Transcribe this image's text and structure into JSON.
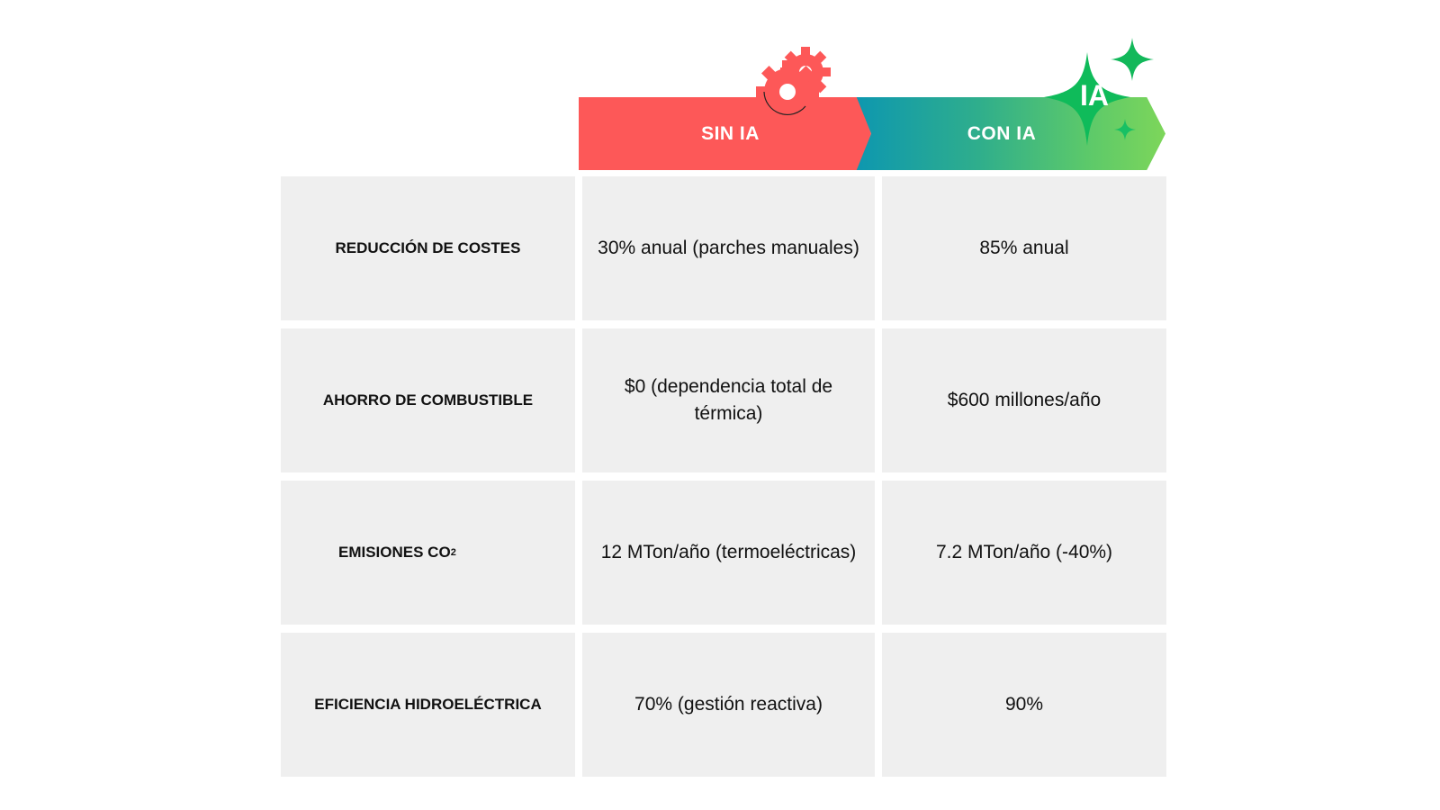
{
  "header": {
    "sin_ia": "SIN IA",
    "con_ia": "CON IA",
    "ia_badge": "IA",
    "gear_icon": "gear-icon",
    "sparkle_icon": "sparkle-icon",
    "colors": {
      "sin": "#fd5858",
      "con_start": "#0d97b0",
      "con_end": "#7dd65a",
      "badge": "#0fbb5a"
    }
  },
  "rows": [
    {
      "label": "REDUCCIÓN DE COSTES",
      "sin": "30% anual (parches manuales)",
      "con": "85% anual"
    },
    {
      "label": "AHORRO DE COMBUSTIBLE",
      "sin": "$0 (dependencia total de térmica)",
      "con": "$600 millones/año"
    },
    {
      "label": "EMISIONES CO",
      "label_sub": "2",
      "sin": "12 MTon/año (termoeléctricas)",
      "con": "7.2 MTon/año (-40%)"
    },
    {
      "label": "EFICIENCIA HIDROELÉCTRICA",
      "sin": "70% (gestión reactiva)",
      "con": "90%"
    }
  ]
}
